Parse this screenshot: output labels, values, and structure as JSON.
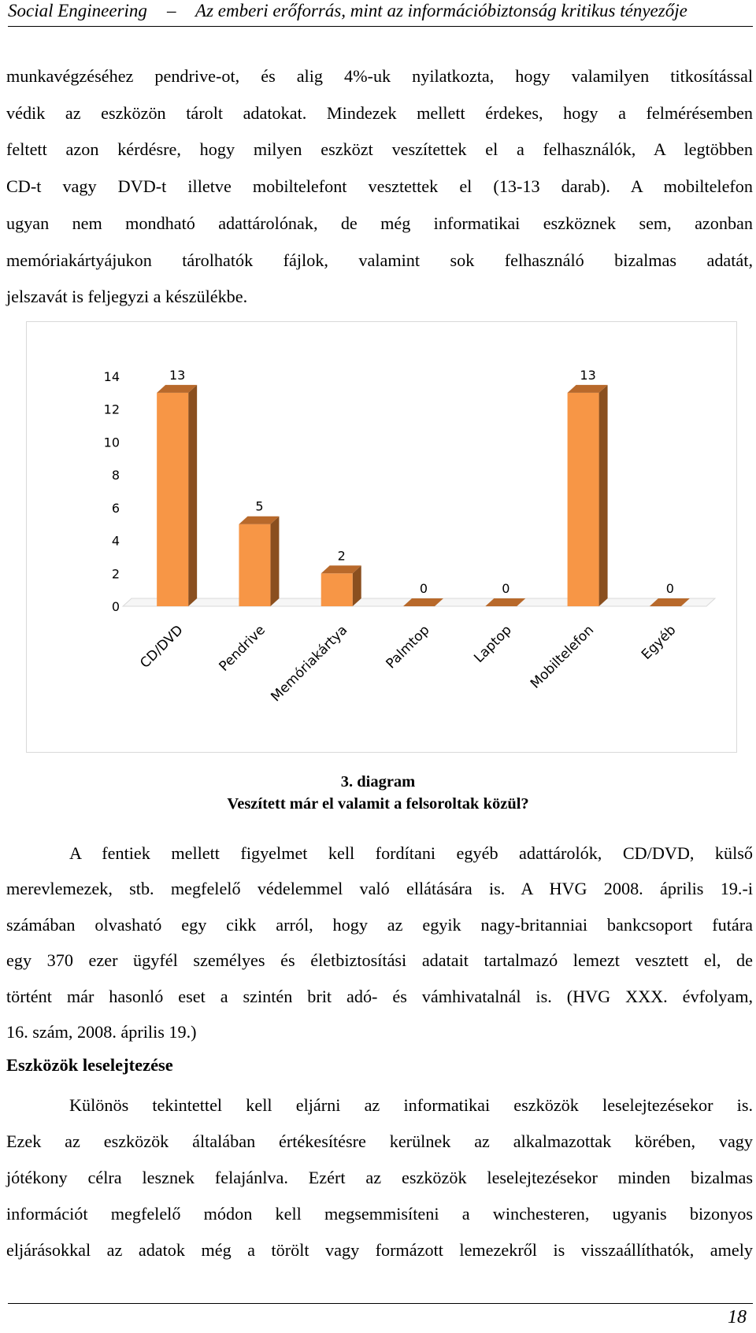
{
  "header": {
    "left": "Social Engineering",
    "dash": "–",
    "right": "Az emberi erőforrás, mint az információbiztonság kritikus tényezője"
  },
  "paragraph1": [
    "munkavégzéséhez pendrive-ot, és alig 4%-uk nyilatkozta, hogy valamilyen titkosítással",
    "védik az eszközön tárolt adatokat. Mindezek mellett érdekes, hogy a felmérésemben",
    "feltett azon kérdésre, hogy milyen eszközt veszítettek el a felhasználók, A legtöbben",
    "CD-t vagy DVD-t illetve mobiltelefont vesztettek el (13-13 darab). A mobiltelefon",
    "ugyan nem mondható adattárolónak, de még informatikai eszköznek sem, azonban",
    "memóriakártyájukon tárolhatók fájlok, valamint sok felhasználó bizalmas adatát,",
    "jelszavát is feljegyzi a készülékbe."
  ],
  "chart_data": {
    "type": "bar",
    "categories": [
      "CD/DVD",
      "Pendrive",
      "Memóriakártya",
      "Palmtop",
      "Laptop",
      "Mobiltelefon",
      "Egyéb"
    ],
    "values": [
      13,
      5,
      2,
      0,
      0,
      13,
      0
    ],
    "data_labels": [
      "13",
      "5",
      "2",
      "0",
      "0",
      "13",
      "0"
    ],
    "yticks": [
      "0",
      "2",
      "4",
      "6",
      "8",
      "10",
      "12",
      "14"
    ],
    "ylim": [
      0,
      14
    ],
    "grid": false,
    "style": "3d",
    "colors": {
      "front": "#f79646",
      "side": "#8a4f1f",
      "top": "#b8692b"
    }
  },
  "caption": {
    "number": "3. diagram",
    "title": "Veszített már el valamit a felsoroltak közül?"
  },
  "paragraph2": [
    "A fentiek mellett figyelmet kell fordítani egyéb adattárolók, CD/DVD, külső",
    "merevlemezek, stb. megfelelő védelemmel való ellátására is. A HVG 2008. április 19.-i",
    "számában olvasható egy cikk arról, hogy az egyik nagy-britanniai bankcsoport futára",
    "egy 370 ezer ügyfél személyes és életbiztosítási adatait tartalmazó lemezt vesztett el, de",
    "történt már hasonló eset a szintén brit adó- és vámhivatalnál is. (HVG XXX. évfolyam,",
    "16. szám, 2008. április 19.)"
  ],
  "section_title": "Eszközök leselejtezése",
  "paragraph3": [
    "Különös tekintettel kell eljárni az informatikai eszközök leselejtezésekor is.",
    "Ezek az eszközök általában értékesítésre kerülnek az alkalmazottak körében, vagy",
    "jótékony célra lesznek felajánlva. Ezért az eszközök leselejtezésekor minden bizalmas",
    "információt megfelelő módon kell megsemmisíteni a winchesteren, ugyanis bizonyos",
    "eljárásokkal az adatok még a törölt vagy formázott lemezekről is visszaállíthatók, amely"
  ],
  "page_number": "18"
}
